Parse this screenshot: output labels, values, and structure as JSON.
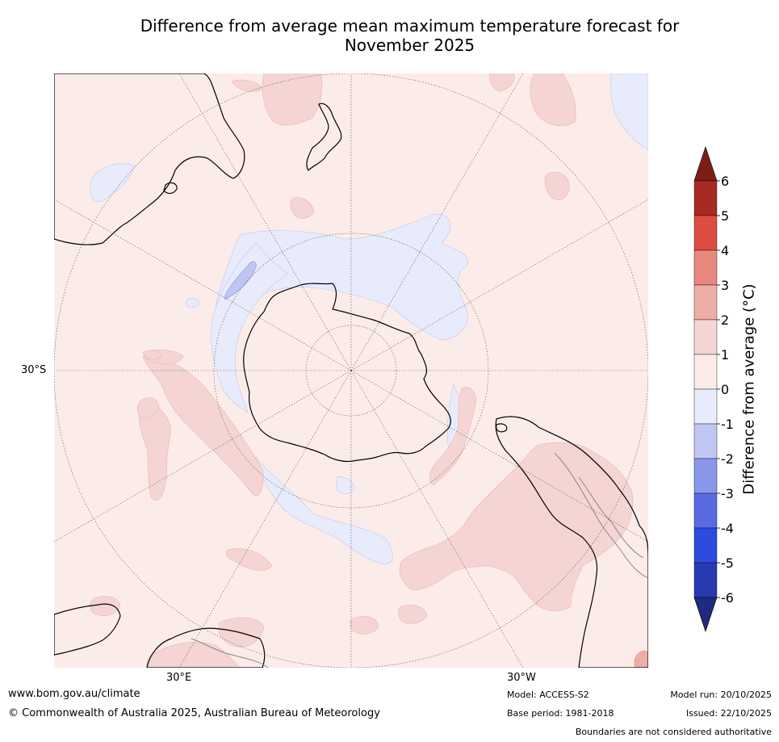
{
  "title": {
    "line1": "Difference from average mean maximum temperature forecast for",
    "line2": "November 2025"
  },
  "map": {
    "projection": "south-polar-stereographic",
    "region": "Southern Hemisphere",
    "lat_labels": [
      "30°S"
    ],
    "lon_labels": [
      "30°E",
      "30°W"
    ]
  },
  "colorbar": {
    "label": "Difference from average (°C)",
    "ticks": [
      "6",
      "5",
      "4",
      "3",
      "2",
      "1",
      "0",
      "-1",
      "-2",
      "-3",
      "-4",
      "-5",
      "-6"
    ],
    "bins": [
      {
        "range": "5 to 6",
        "color": "#a82a24"
      },
      {
        "range": "4 to 5",
        "color": "#dc4d41"
      },
      {
        "range": "3 to 4",
        "color": "#e8877d"
      },
      {
        "range": "2 to 3",
        "color": "#edaea8"
      },
      {
        "range": "1 to 2",
        "color": "#f4d5d3"
      },
      {
        "range": "0 to 1",
        "color": "#fcece9"
      },
      {
        "range": "-1 to 0",
        "color": "#e8ebfb"
      },
      {
        "range": "-2 to -1",
        "color": "#c0c6f2"
      },
      {
        "range": "-3 to -2",
        "color": "#8996ea"
      },
      {
        "range": "-4 to -3",
        "color": "#5a6be2"
      },
      {
        "range": "-5 to -4",
        "color": "#2e4bdf"
      },
      {
        "range": "-6 to -5",
        "color": "#273ab0"
      }
    ],
    "over_color": "#7b1e18",
    "under_color": "#1f2a80"
  },
  "footer": {
    "website": "www.bom.gov.au/climate",
    "copyright": "© Commonwealth of Australia 2025, Australian Bureau of Meteorology",
    "model": "Model: ACCESS-S2",
    "base_period": "Base period: 1981-2018",
    "model_run": "Model run: 20/10/2025",
    "issued": "Issued: 22/10/2025",
    "disclaimer": "Boundaries are not considered authoritative"
  }
}
